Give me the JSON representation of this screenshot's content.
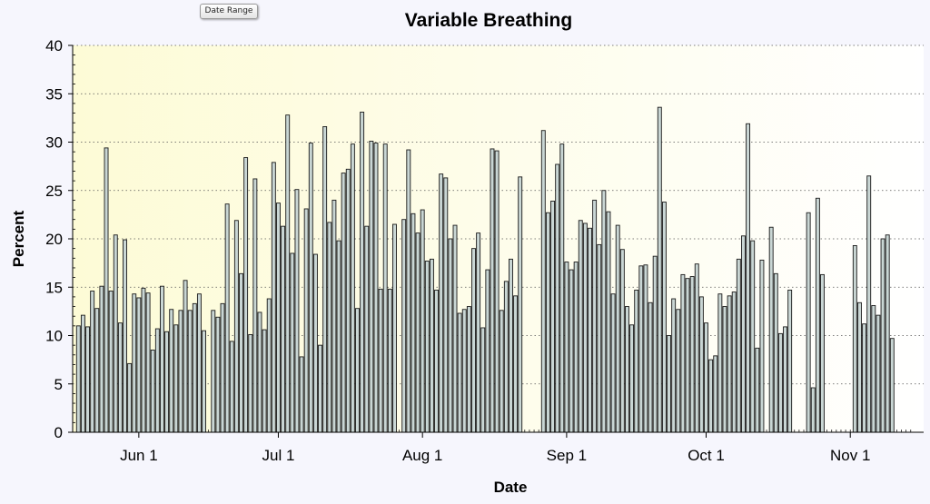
{
  "toolbar": {
    "date_range_label": "Date Range"
  },
  "colors": {
    "bar_fill": "#c9d6d4",
    "bar_stroke": "#1a1a1a",
    "plot_bg_start": "#fdfbd6",
    "plot_bg_end": "#ffffff",
    "gridline": "#555555"
  },
  "chart_data": {
    "type": "bar",
    "title": "Variable Breathing",
    "xlabel": "Date",
    "ylabel": "Percent",
    "ylim": [
      0,
      40
    ],
    "yticks": [
      0,
      5,
      10,
      15,
      20,
      25,
      30,
      35,
      40
    ],
    "grid": true,
    "x_start_date": "May 19",
    "x_tick_labels": [
      {
        "label": "Jun 1",
        "day": 13
      },
      {
        "label": "Jul 1",
        "day": 43
      },
      {
        "label": "Aug 1",
        "day": 74
      },
      {
        "label": "Sep 1",
        "day": 105
      },
      {
        "label": "Oct 1",
        "day": 135
      },
      {
        "label": "Nov 1",
        "day": 166
      }
    ],
    "series": [
      {
        "name": "Variable Breathing",
        "values": [
          11.0,
          12.1,
          10.9,
          14.6,
          12.8,
          15.1,
          29.4,
          14.6,
          20.4,
          11.3,
          19.9,
          7.1,
          14.3,
          13.9,
          14.9,
          14.4,
          8.5,
          10.7,
          15.1,
          10.4,
          12.7,
          11.1,
          12.6,
          15.7,
          12.6,
          13.3,
          14.3,
          10.5,
          null,
          12.6,
          11.9,
          13.3,
          23.6,
          9.4,
          21.9,
          16.4,
          28.4,
          10.1,
          26.2,
          12.4,
          10.6,
          13.8,
          27.9,
          23.7,
          21.3,
          32.8,
          18.5,
          25.1,
          7.8,
          23.1,
          29.9,
          18.4,
          9.0,
          31.6,
          21.7,
          24.0,
          19.8,
          26.8,
          27.2,
          29.8,
          12.8,
          33.1,
          21.3,
          30.1,
          29.9,
          14.8,
          29.8,
          14.8,
          21.5,
          null,
          22.0,
          29.2,
          22.6,
          20.6,
          23.0,
          17.7,
          17.9,
          14.7,
          26.7,
          26.3,
          20.0,
          21.4,
          12.3,
          12.7,
          13.0,
          19.0,
          20.6,
          10.8,
          16.8,
          29.3,
          29.1,
          12.6,
          15.6,
          17.9,
          14.1,
          26.4,
          null,
          null,
          null,
          null,
          31.2,
          22.7,
          23.9,
          27.7,
          29.8,
          17.6,
          16.8,
          17.6,
          21.9,
          21.6,
          21.1,
          24.0,
          19.4,
          25.0,
          22.8,
          14.3,
          21.4,
          18.9,
          13.0,
          11.1,
          14.7,
          17.2,
          17.3,
          13.4,
          18.2,
          33.6,
          23.8,
          10.0,
          13.8,
          12.7,
          16.3,
          15.9,
          16.1,
          17.4,
          14.0,
          11.3,
          7.5,
          7.9,
          14.3,
          13.0,
          14.1,
          14.5,
          17.9,
          20.3,
          31.9,
          19.8,
          8.7,
          17.8,
          null,
          21.2,
          16.4,
          10.2,
          10.9,
          14.7,
          null,
          null,
          null,
          22.7,
          4.6,
          24.2,
          16.3,
          null,
          null,
          null,
          null,
          null,
          null,
          19.3,
          13.4,
          11.2,
          26.5,
          13.1,
          12.1,
          20.0,
          20.4,
          9.7
        ]
      }
    ]
  }
}
